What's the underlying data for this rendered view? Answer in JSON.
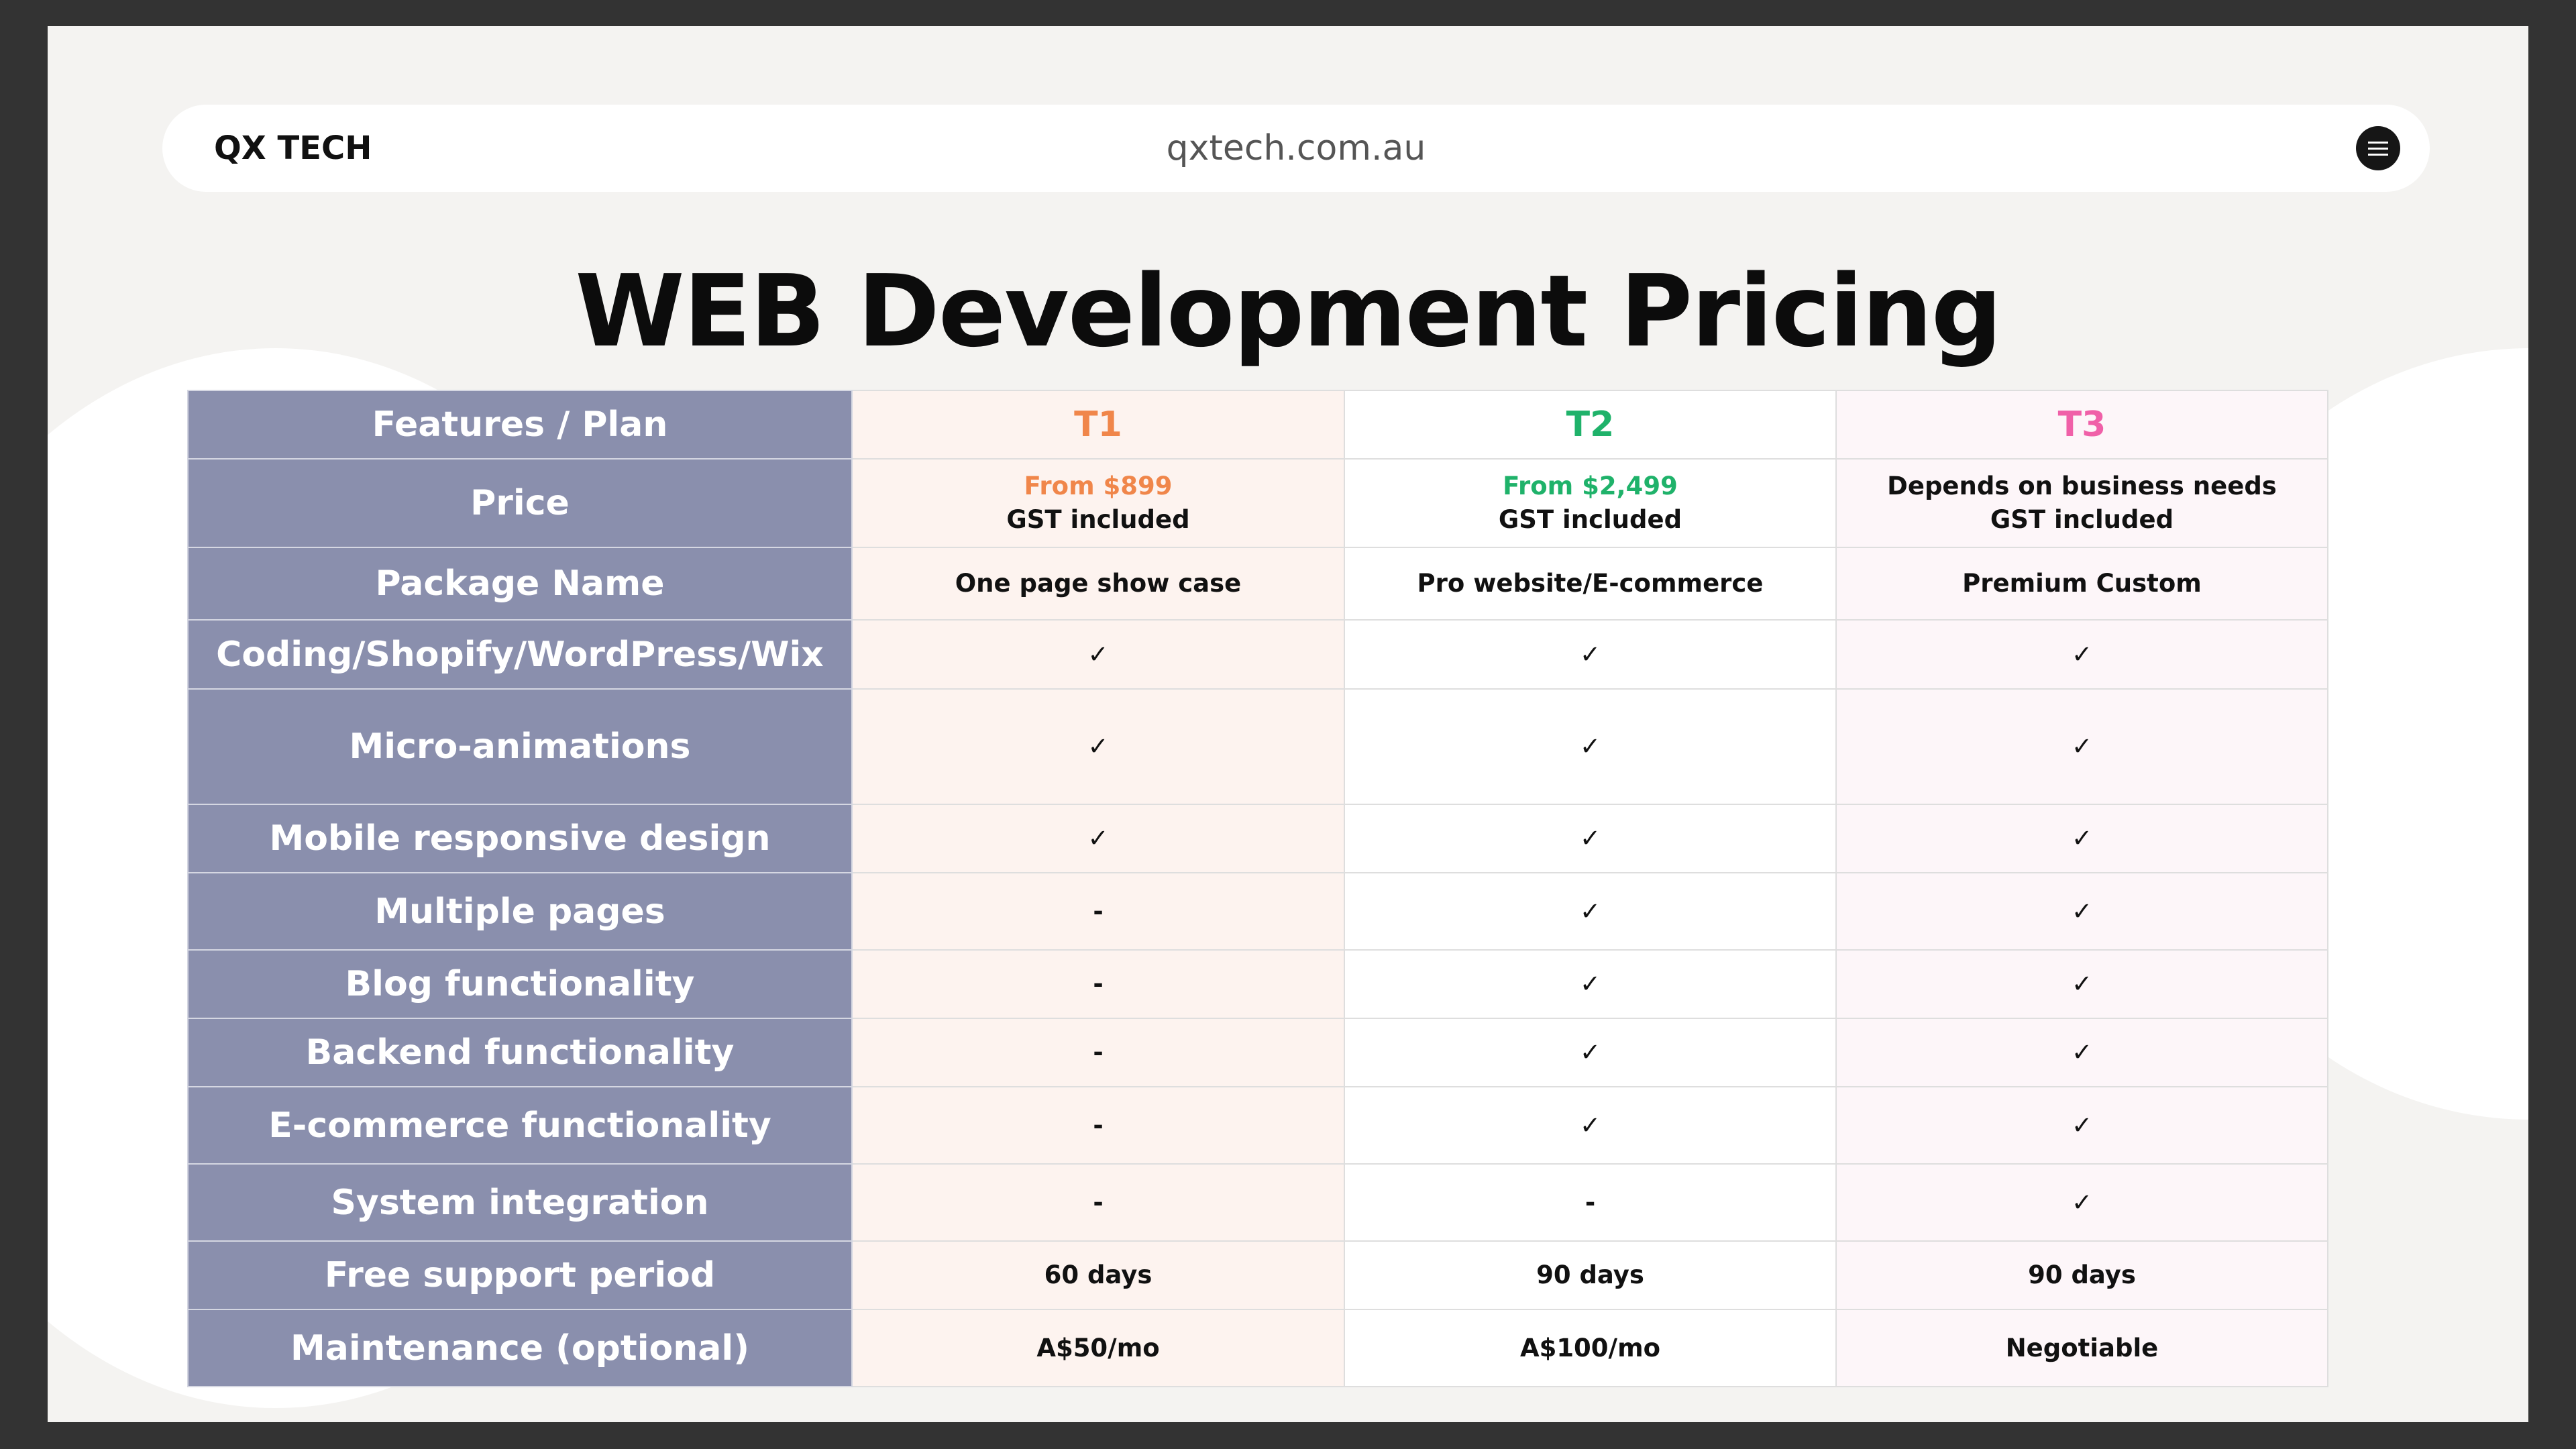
{
  "header": {
    "brand": "QX TECH",
    "url": "qxtech.com.au",
    "menu_icon": "hamburger-menu-icon"
  },
  "title": "WEB Development Pricing",
  "colors": {
    "t1": "#f0864a",
    "t2": "#1fb26a",
    "t3": "#f060a8",
    "feature_column": "#8a8fad"
  },
  "table": {
    "header_label": "Features / Plan",
    "tiers": [
      "T1",
      "T2",
      "T3"
    ],
    "price": {
      "label": "Price",
      "t1": {
        "line1": "From $899",
        "line2": "GST included"
      },
      "t2": {
        "line1": "From $2,499",
        "line2": "GST included"
      },
      "t3": {
        "line1": "Depends on business needs",
        "line2": "GST included"
      }
    },
    "rows": [
      {
        "feature": "Package Name",
        "values": [
          "One page show case",
          "Pro website/E-commerce",
          "Premium Custom"
        ]
      },
      {
        "feature": "Coding/Shopify/WordPress/Wix",
        "values": [
          "✓",
          "✓",
          "✓"
        ]
      },
      {
        "feature": "Micro-animations",
        "values": [
          "✓",
          "✓",
          "✓"
        ]
      },
      {
        "feature": "Mobile responsive design",
        "values": [
          "✓",
          "✓",
          "✓"
        ]
      },
      {
        "feature": "Multiple pages",
        "values": [
          "-",
          "✓",
          "✓"
        ]
      },
      {
        "feature": "Blog functionality",
        "values": [
          "-",
          "✓",
          "✓"
        ]
      },
      {
        "feature": "Backend functionality",
        "values": [
          "-",
          "✓",
          "✓"
        ]
      },
      {
        "feature": "E-commerce functionality",
        "values": [
          "-",
          "✓",
          "✓"
        ]
      },
      {
        "feature": "System integration",
        "values": [
          "-",
          "-",
          "✓"
        ]
      },
      {
        "feature": "Free support period",
        "values": [
          "60 days",
          "90 days",
          "90 days"
        ]
      },
      {
        "feature": "Maintenance (optional)",
        "values": [
          "A$50/mo",
          "A$100/mo",
          "Negotiable"
        ]
      }
    ]
  }
}
